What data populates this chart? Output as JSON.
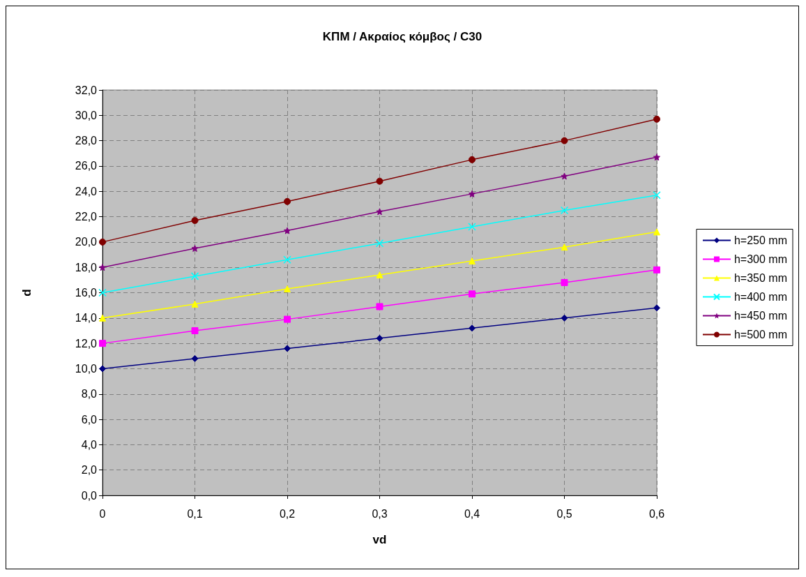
{
  "chart_data": {
    "type": "line",
    "title": "ΚΠΜ / Ακραίος κόμβος / C30",
    "xlabel": "vd",
    "ylabel": "d",
    "x": [
      0,
      0.1,
      0.2,
      0.3,
      0.4,
      0.5,
      0.6
    ],
    "series": [
      {
        "name": "h=250 mm",
        "color": "#000080",
        "marker": "diamond",
        "values": [
          10.0,
          10.8,
          11.6,
          12.4,
          13.2,
          14.0,
          14.8
        ]
      },
      {
        "name": "h=300 mm",
        "color": "#ff00ff",
        "marker": "square",
        "values": [
          12.0,
          13.0,
          13.9,
          14.9,
          15.9,
          16.8,
          17.8
        ]
      },
      {
        "name": "h=350 mm",
        "color": "#ffff00",
        "marker": "triangle",
        "values": [
          14.0,
          15.1,
          16.3,
          17.4,
          18.5,
          19.6,
          20.8
        ]
      },
      {
        "name": "h=400 mm",
        "color": "#00ffff",
        "marker": "cross",
        "values": [
          16.0,
          17.3,
          18.6,
          19.9,
          21.2,
          22.5,
          23.7
        ]
      },
      {
        "name": "h=450 mm",
        "color": "#800080",
        "marker": "star",
        "values": [
          18.0,
          19.5,
          20.9,
          22.4,
          23.8,
          25.2,
          26.7
        ]
      },
      {
        "name": "h=500 mm",
        "color": "#800000",
        "marker": "circle",
        "values": [
          20.0,
          21.7,
          23.2,
          24.8,
          26.5,
          28.0,
          29.7
        ]
      }
    ],
    "xlim": [
      0,
      0.6
    ],
    "xticks": [
      0,
      {
        "value": 0.1,
        "label": "0,1"
      },
      {
        "value": 0.2,
        "label": "0,2"
      },
      {
        "value": 0.3,
        "label": "0,3"
      },
      {
        "value": 0.4,
        "label": "0,4"
      },
      {
        "value": 0.5,
        "label": "0,5"
      },
      {
        "value": 0.6,
        "label": "0,6"
      }
    ],
    "ylim": [
      0,
      32
    ],
    "yticks": [
      {
        "value": 0,
        "label": "0,0"
      },
      {
        "value": 2,
        "label": "2,0"
      },
      {
        "value": 4,
        "label": "4,0"
      },
      {
        "value": 6,
        "label": "6,0"
      },
      {
        "value": 8,
        "label": "8,0"
      },
      {
        "value": 10,
        "label": "10,0"
      },
      {
        "value": 12,
        "label": "12,0"
      },
      {
        "value": 14,
        "label": "14,0"
      },
      {
        "value": 16,
        "label": "16,0"
      },
      {
        "value": 18,
        "label": "18,0"
      },
      {
        "value": 20,
        "label": "20,0"
      },
      {
        "value": 22,
        "label": "22,0"
      },
      {
        "value": 24,
        "label": "24,0"
      },
      {
        "value": 26,
        "label": "26,0"
      },
      {
        "value": 28,
        "label": "28,0"
      },
      {
        "value": 30,
        "label": "30,0"
      },
      {
        "value": 32,
        "label": "32,0"
      }
    ],
    "grid": true,
    "legend": "right",
    "line_style": "solid"
  }
}
